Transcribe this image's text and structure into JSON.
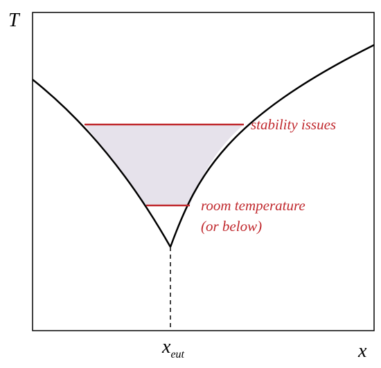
{
  "axes": {
    "y_label": "T",
    "x_label": "x",
    "x_tick": {
      "main": "x",
      "subscript": "eut"
    }
  },
  "annotations": {
    "upper": "stability issues",
    "lower_line1": "room temperature",
    "lower_line2": "(or below)"
  }
}
